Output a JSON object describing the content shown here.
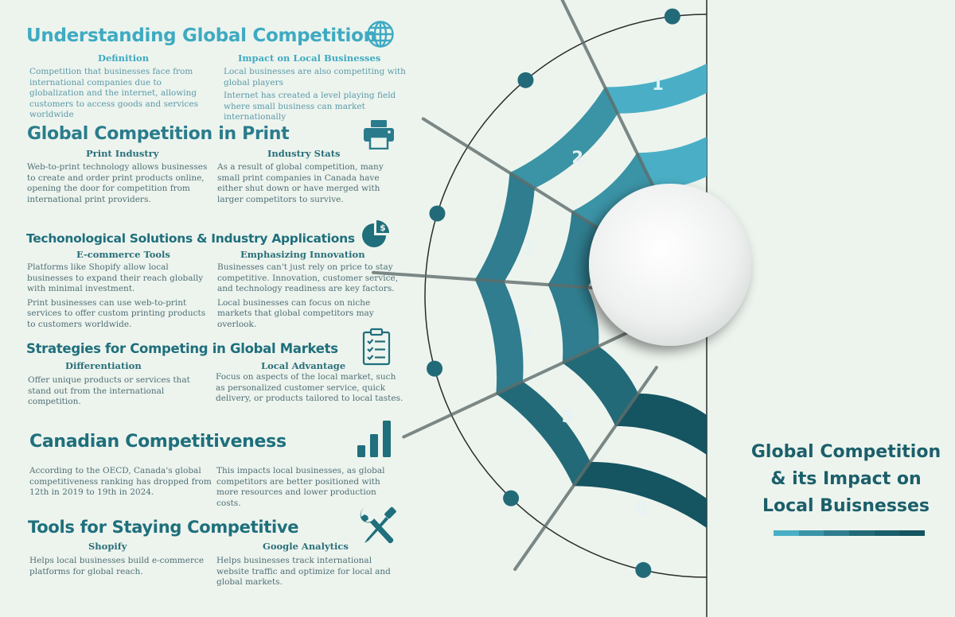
{
  "colors": {
    "light_teal": "#4aafc6",
    "mid_teal": "#3b93a6",
    "teal": "#2f7d8e",
    "dark_teal": "#236a78",
    "darker_teal": "#1b5e6b",
    "darkest_teal": "#155461",
    "heading_light": "#3eaac2",
    "heading_dark": "#1b5f6a",
    "background": "#edf4ee"
  },
  "sections": [
    {
      "title": "Understanding Global Competition",
      "icon": "globe-icon",
      "col1": {
        "heading": "Definition",
        "paragraphs": [
          "Competition that businesses face from international companies due to globalization and the internet, allowing customers to access goods and services worldwide"
        ]
      },
      "col2": {
        "heading": "Impact on Local Businesses",
        "paragraphs": [
          "Local businesses are also competiting with global players",
          "Internet has created a level playing field where small business can market internationally"
        ]
      }
    },
    {
      "title": "Global Competition in Print",
      "icon": "printer-icon",
      "col1": {
        "heading": "Print Industry",
        "paragraphs": [
          "Web-to-print technology allows businesses to create and order print products online, opening the door for competition from international print providers."
        ]
      },
      "col2": {
        "heading": "Industry Stats",
        "paragraphs": [
          "As a result of global competition, many small print companies in Canada have either shut down or have merged with larger competitors to survive."
        ]
      }
    },
    {
      "title": "Techonological Solutions & Industry Applications",
      "icon": "dollar-pie-chart-icon",
      "col1": {
        "heading": "E-commerce Tools",
        "paragraphs": [
          "Platforms like Shopify allow local businesses to expand their reach globally with minimal investment.",
          "Print businesses can use web-to-print services to offer custom printing products to customers worldwide."
        ]
      },
      "col2": {
        "heading": "Emphasizing Innovation",
        "paragraphs": [
          "Businesses can't just rely on price to stay competitive. Innovation, customer service, and technology readiness are key factors.",
          "Local businesses can focus on niche markets that global competitors may overlook."
        ]
      }
    },
    {
      "title": "Strategies for Competing in Global Markets",
      "icon": "clipboard-checklist-icon",
      "col1": {
        "heading": "Differentiation",
        "paragraphs": [
          "Offer unique products or services that stand out from the international competition."
        ]
      },
      "col2": {
        "heading": "Local Advantage",
        "paragraphs": [
          "Focus on aspects of the local market, such as personalized customer service, quick delivery, or products tailored to local tastes."
        ]
      }
    },
    {
      "title": "Canadian Competitiveness",
      "icon": "bar-chart-icon",
      "col1": {
        "heading": "",
        "paragraphs": [
          "According to the OECD, Canada's global competitiveness ranking has dropped from 12th in 2019 to 19th in 2024."
        ]
      },
      "col2": {
        "heading": "",
        "paragraphs": [
          "This impacts local businesses, as global competitors are better positioned with more resources and lower production costs."
        ]
      }
    },
    {
      "title": "Tools for Staying Competitive",
      "icon": "wrench-screwdriver-icon",
      "col1": {
        "heading": "Shopify",
        "paragraphs": [
          "Helps local businesses build e-commerce platforms for global reach."
        ]
      },
      "col2": {
        "heading": "Google Analytics",
        "paragraphs": [
          "Helps businesses track international website traffic and optimize for local and global markets."
        ]
      }
    }
  ],
  "diagram": {
    "segment_numbers": [
      "1",
      "2",
      "3",
      "4",
      "5",
      "6"
    ]
  },
  "main_title": {
    "line1": "Global Competition",
    "line2": "& its Impact on",
    "line3": "Local Buisnesses"
  }
}
